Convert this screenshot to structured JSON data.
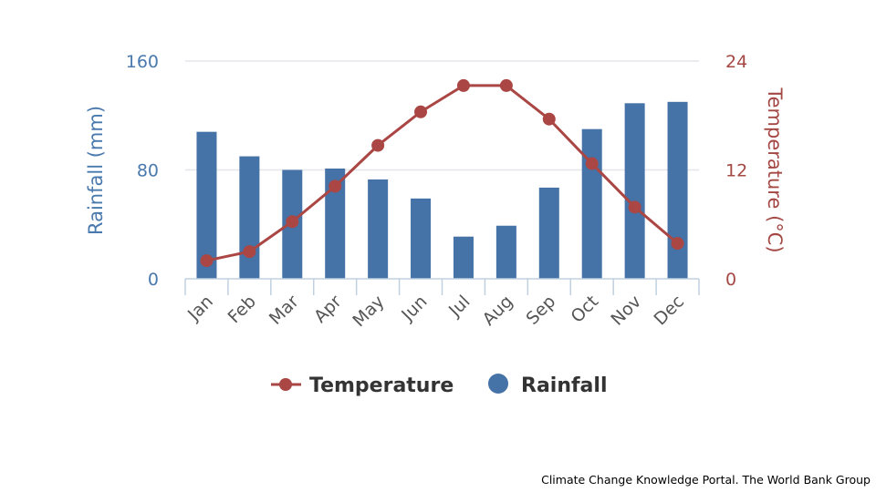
{
  "chart_data": {
    "type": "bar",
    "categories": [
      "Jan",
      "Feb",
      "Mar",
      "Apr",
      "May",
      "Jun",
      "Jul",
      "Aug",
      "Sep",
      "Oct",
      "Nov",
      "Dec"
    ],
    "series": [
      {
        "name": "Rainfall",
        "type": "bar",
        "axis": "left",
        "color": "#4572a7",
        "values": [
          108,
          90,
          80,
          81,
          73,
          59,
          31,
          39,
          67,
          110,
          129,
          130
        ]
      },
      {
        "name": "Temperature",
        "type": "line",
        "axis": "right",
        "color": "#aa4643",
        "values": [
          2.0,
          3.0,
          6.3,
          10.2,
          14.7,
          18.4,
          21.3,
          21.3,
          17.6,
          12.7,
          7.9,
          3.9
        ]
      }
    ],
    "yleft": {
      "label": "Rainfall (mm)",
      "lim": [
        0,
        160
      ],
      "ticks": [
        0,
        80,
        160
      ],
      "color": "#4a79ad"
    },
    "yright": {
      "label": "Temperature (°C)",
      "lim": [
        0,
        24
      ],
      "ticks": [
        0,
        12,
        24
      ],
      "color": "#a44844"
    },
    "grid": true,
    "legend": "bottom-center"
  },
  "credit": "Climate Change Knowledge Portal. The World Bank Group"
}
